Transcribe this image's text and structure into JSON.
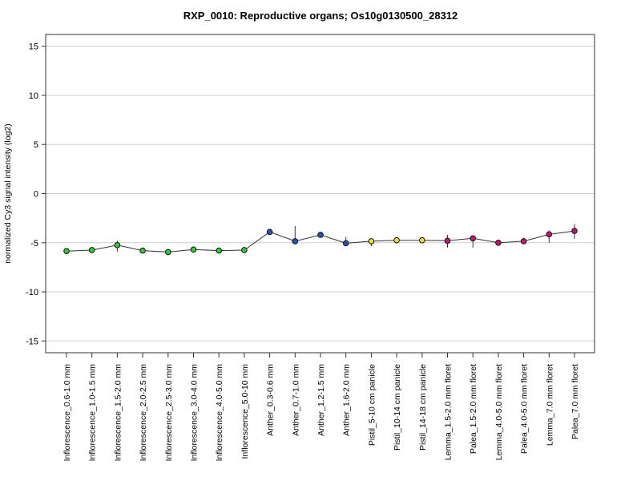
{
  "chart_data": {
    "type": "line",
    "title": "RXP_0010: Reproductive organs; Os10g0130500_28312",
    "ylabel": "normalized Cy3 signal intensity (log2)",
    "xlabel": "",
    "ylim": [
      -16.2,
      16.2
    ],
    "yticks": [
      -15,
      -10,
      -5,
      0,
      5,
      10,
      15
    ],
    "grid": true,
    "categories": [
      "Inflorescence_0.6-1.0 mm",
      "Inflorescence_1.0-1.5 mm",
      "Inflorescence_1.5-2.0 mm",
      "Inflorescence_2.0-2.5 mm",
      "Inflorescence_2.5-3.0 mm",
      "Inflorescence_3.0-4.0 mm",
      "Inflorescence_4.0-5.0 mm",
      "Inflorescence_5.0-10 mm",
      "Anther_0.3-0.6 mm",
      "Anther_0.7-1.0 mm",
      "Anther_1.2-1.5 mm",
      "Anther_1.6-2.0 mm",
      "Pistil_5-10 cm panicle",
      "Pistil_10-14 cm panicle",
      "Pistil_14-18 cm panicle",
      "Lemma_1.5-2.0 mm floret",
      "Palea_1.5-2.0 mm floret",
      "Lemma_4.0-5.0 mm floret",
      "Palea_4.0-5.0 mm floret",
      "Lemma_7.0 mm floret",
      "Palea_7.0 mm floret"
    ],
    "values": [
      -5.85,
      -5.75,
      -5.25,
      -5.8,
      -5.95,
      -5.7,
      -5.8,
      -5.75,
      -3.9,
      -4.85,
      -4.2,
      -5.05,
      -4.85,
      -4.75,
      -4.75,
      -4.8,
      -4.55,
      -5.0,
      -4.85,
      -4.15,
      -3.8
    ],
    "err_low": [
      -5.85,
      -5.75,
      -5.9,
      -5.8,
      -5.95,
      -5.7,
      -5.8,
      -5.75,
      -3.9,
      -4.85,
      -4.2,
      -5.2,
      -5.35,
      -4.75,
      -4.95,
      -5.5,
      -5.5,
      -5.0,
      -5.1,
      -5.0,
      -4.6
    ],
    "err_high": [
      -5.85,
      -5.75,
      -4.8,
      -5.8,
      -5.95,
      -5.7,
      -5.8,
      -5.75,
      -3.9,
      -3.3,
      -4.2,
      -4.4,
      -4.7,
      -4.75,
      -4.55,
      -4.2,
      -4.3,
      -5.0,
      -4.5,
      -3.75,
      -3.1
    ],
    "colors": [
      "#33cc33",
      "#33cc33",
      "#33cc33",
      "#33cc33",
      "#33cc33",
      "#33cc33",
      "#33cc33",
      "#33cc33",
      "#2255bb",
      "#2255bb",
      "#2255bb",
      "#2255bb",
      "#eedd33",
      "#eedd33",
      "#eedd33",
      "#cc1177",
      "#cc1177",
      "#cc1177",
      "#cc1177",
      "#cc1177",
      "#cc1177"
    ]
  }
}
